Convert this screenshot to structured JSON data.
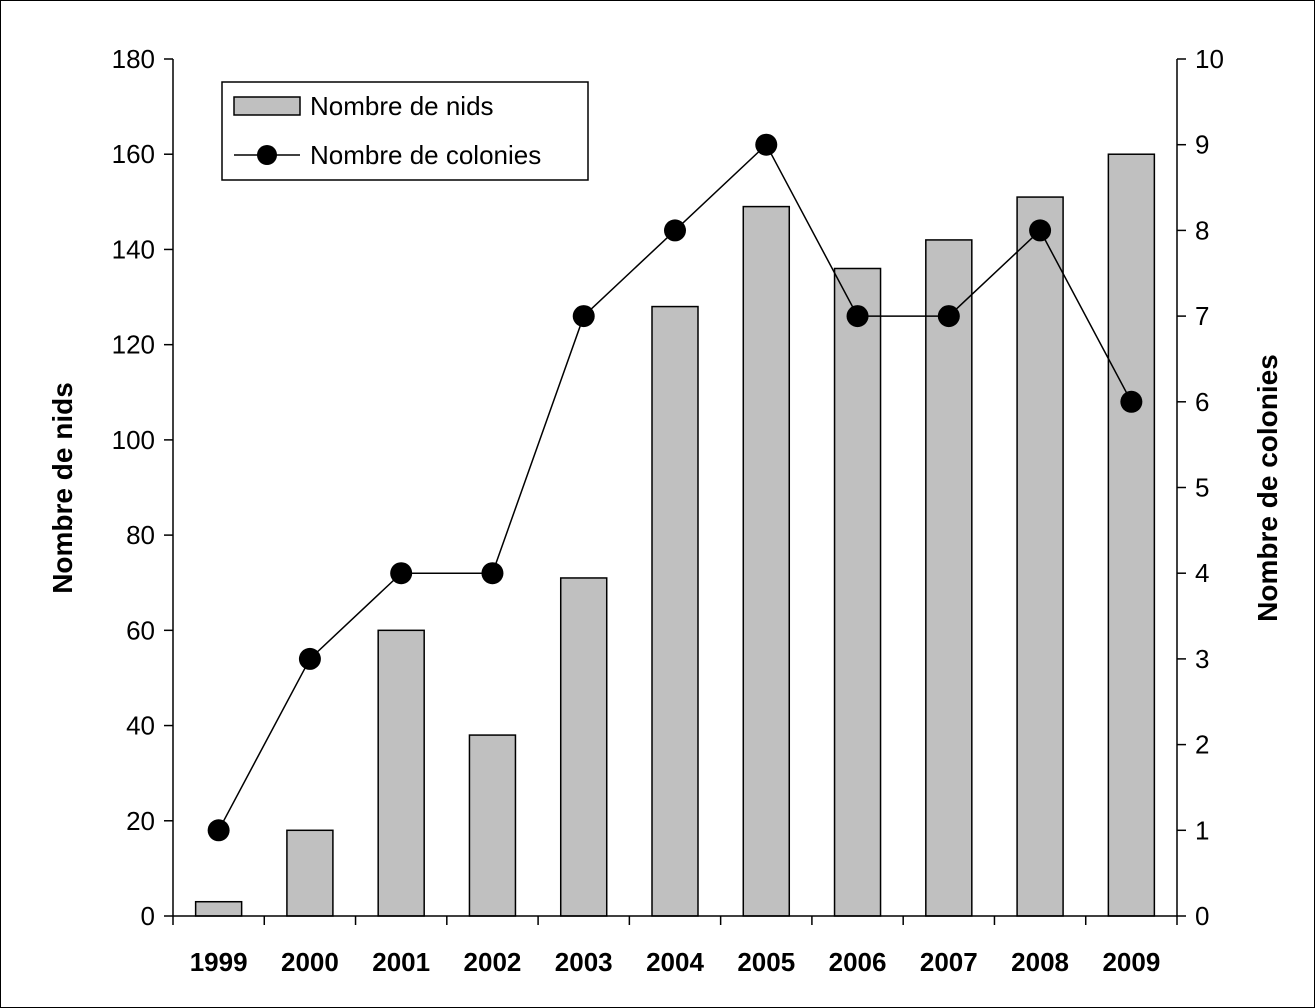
{
  "chart_data": {
    "type": "bar",
    "categories": [
      "1999",
      "2000",
      "2001",
      "2002",
      "2003",
      "2004",
      "2005",
      "2006",
      "2007",
      "2008",
      "2009"
    ],
    "series": [
      {
        "name": "Nombre de nids",
        "type": "bar",
        "axis": "left",
        "values": [
          3,
          18,
          60,
          38,
          71,
          128,
          149,
          136,
          142,
          151,
          160
        ]
      },
      {
        "name": "Nombre de colonies",
        "type": "line",
        "axis": "right",
        "values": [
          1,
          3,
          4,
          4,
          7,
          8,
          9,
          7,
          7,
          8,
          6
        ]
      }
    ],
    "ylabel": "Nombre de nids",
    "y2label": "Nombre de colonies",
    "ylim": [
      0,
      180
    ],
    "y2lim": [
      0,
      10
    ],
    "yticks": [
      0,
      20,
      40,
      60,
      80,
      100,
      120,
      140,
      160,
      180
    ],
    "y2ticks": [
      0,
      1,
      2,
      3,
      4,
      5,
      6,
      7,
      8,
      9,
      10
    ],
    "grid": false,
    "legend": "top-left",
    "colors": {
      "bar_fill": "#c0c0c0",
      "bar_stroke": "#000000",
      "line": "#000000",
      "marker": "#000000"
    }
  }
}
